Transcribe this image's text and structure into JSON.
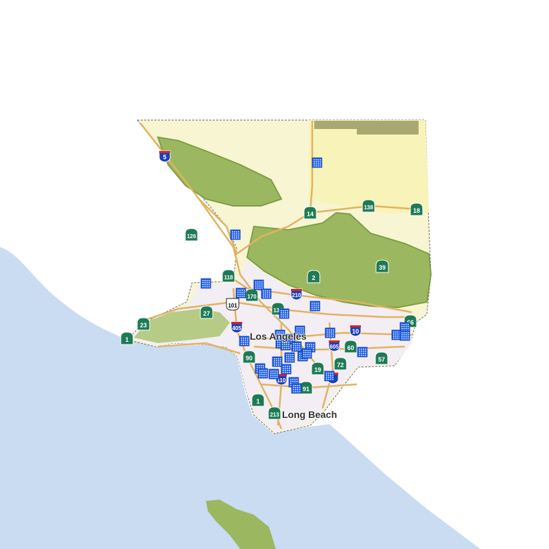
{
  "map": {
    "colors": {
      "ocean": "#c9dcf2",
      "land": "#f7f5d2",
      "urban": "#f3eef4",
      "forest": "#9bb860",
      "forest_dark": "#7d9e45",
      "road": "#e2b260",
      "marker": "#1f5fe6",
      "state_shield": "#1e7a55",
      "interstate_shield": "#1d3fb8"
    },
    "places": [
      {
        "name": "Los Angeles"
      },
      {
        "name": "Long Beach"
      }
    ],
    "shields": [
      {
        "label": "5",
        "type": "interstate"
      },
      {
        "label": "14",
        "type": "state"
      },
      {
        "label": "138",
        "type": "state"
      },
      {
        "label": "18",
        "type": "state"
      },
      {
        "label": "126",
        "type": "state"
      },
      {
        "label": "118",
        "type": "state"
      },
      {
        "label": "2",
        "type": "state"
      },
      {
        "label": "39",
        "type": "state"
      },
      {
        "label": "170",
        "type": "state"
      },
      {
        "label": "210",
        "type": "interstate"
      },
      {
        "label": "101",
        "type": "us"
      },
      {
        "label": "134",
        "type": "state"
      },
      {
        "label": "27",
        "type": "state"
      },
      {
        "label": "23",
        "type": "state"
      },
      {
        "label": "405",
        "type": "interstate"
      },
      {
        "label": "10",
        "type": "interstate"
      },
      {
        "label": "66",
        "type": "state"
      },
      {
        "label": "1",
        "type": "state"
      },
      {
        "label": "605",
        "type": "interstate"
      },
      {
        "label": "60",
        "type": "state"
      },
      {
        "label": "90",
        "type": "state"
      },
      {
        "label": "57",
        "type": "state"
      },
      {
        "label": "72",
        "type": "state"
      },
      {
        "label": "19",
        "type": "state"
      },
      {
        "label": "110",
        "type": "interstate"
      },
      {
        "label": "5",
        "type": "interstate"
      },
      {
        "label": "91",
        "type": "state"
      },
      {
        "label": "1",
        "type": "state"
      },
      {
        "label": "213",
        "type": "state"
      }
    ],
    "marker_icon": "office-building-icon"
  }
}
